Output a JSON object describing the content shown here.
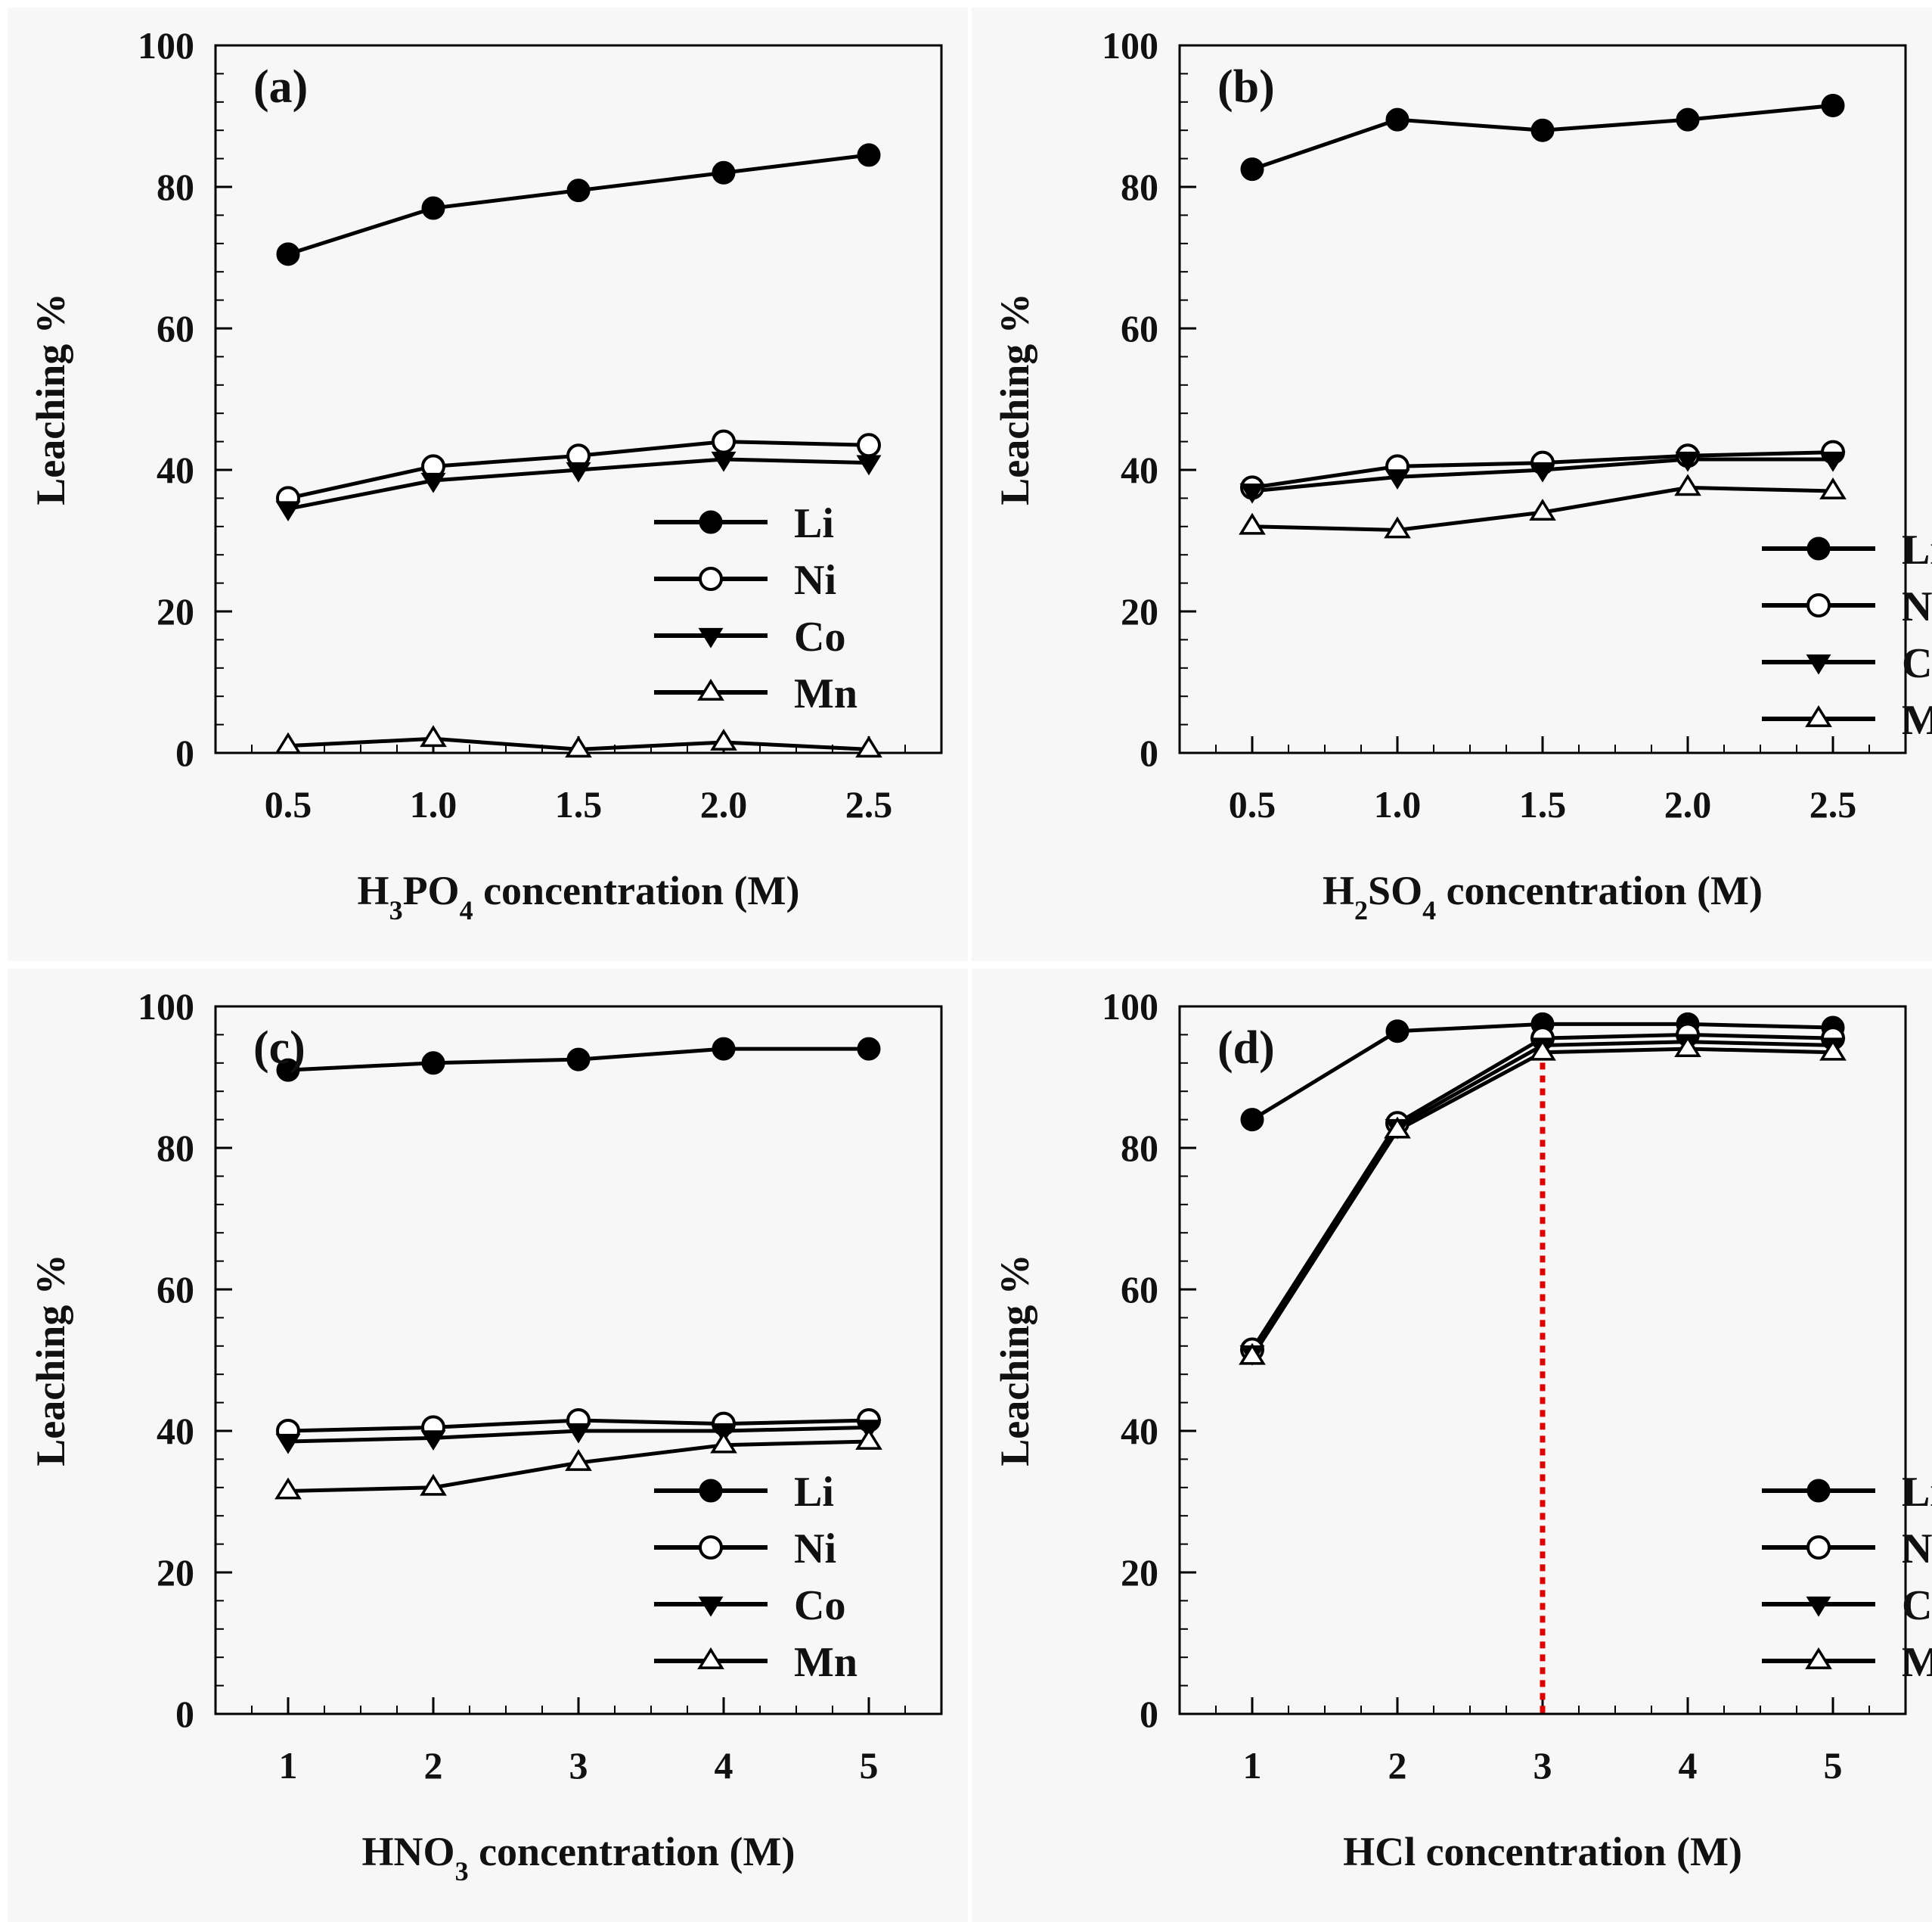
{
  "chart_data": [
    {
      "type": "line",
      "panel_label": "(a)",
      "xlabel_parts": [
        "H",
        "3",
        "PO",
        "4",
        " concentration (M)"
      ],
      "xlabel": "H3PO4 concentration (M)",
      "ylabel": "Leaching %",
      "x": [
        0.5,
        1.0,
        1.5,
        2.0,
        2.5
      ],
      "x_tick_labels": [
        "0.5",
        "1.0",
        "1.5",
        "2.0",
        "2.5"
      ],
      "xlim": [
        0.25,
        2.75
      ],
      "ylim": [
        0,
        100
      ],
      "y_ticks": [
        0,
        20,
        40,
        60,
        80,
        100
      ],
      "legend_position": "right",
      "series": [
        {
          "name": "Li",
          "marker": "filled-circle",
          "values": [
            70.5,
            77,
            79.5,
            82,
            84.5
          ]
        },
        {
          "name": "Ni",
          "marker": "open-circle",
          "values": [
            36,
            40.5,
            42,
            44,
            43.5
          ]
        },
        {
          "name": "Co",
          "marker": "filled-down-triangle",
          "values": [
            34.5,
            38.5,
            40,
            41.5,
            41
          ]
        },
        {
          "name": "Mn",
          "marker": "open-up-triangle",
          "values": [
            1,
            2,
            0.5,
            1.5,
            0.5
          ]
        }
      ]
    },
    {
      "type": "line",
      "panel_label": "(b)",
      "xlabel_parts": [
        "H",
        "2",
        "SO",
        "4",
        " concentration (M)"
      ],
      "xlabel": "H2SO4 concentration (M)",
      "ylabel": "Leaching %",
      "x": [
        0.5,
        1.0,
        1.5,
        2.0,
        2.5
      ],
      "x_tick_labels": [
        "0.5",
        "1.0",
        "1.5",
        "2.0",
        "2.5"
      ],
      "xlim": [
        0.25,
        2.75
      ],
      "ylim": [
        0,
        100
      ],
      "y_ticks": [
        0,
        20,
        40,
        60,
        80,
        100
      ],
      "legend_position": "right",
      "series": [
        {
          "name": "Li",
          "marker": "filled-circle",
          "values": [
            82.5,
            89.5,
            88,
            89.5,
            91.5
          ]
        },
        {
          "name": "Ni",
          "marker": "open-circle",
          "values": [
            37.5,
            40.5,
            41,
            42,
            42.5
          ]
        },
        {
          "name": "Co",
          "marker": "filled-down-triangle",
          "values": [
            37,
            39,
            40,
            41.5,
            41.5
          ]
        },
        {
          "name": "Mn",
          "marker": "open-up-triangle",
          "values": [
            32,
            31.5,
            34,
            37.5,
            37
          ]
        }
      ]
    },
    {
      "type": "line",
      "panel_label": "(c)",
      "xlabel_parts": [
        "HNO",
        "3",
        " concentration (M)"
      ],
      "xlabel": "HNO3 concentration (M)",
      "ylabel": "Leaching %",
      "x": [
        1,
        2,
        3,
        4,
        5
      ],
      "x_tick_labels": [
        "1",
        "2",
        "3",
        "4",
        "5"
      ],
      "xlim": [
        0.5,
        5.5
      ],
      "ylim": [
        0,
        100
      ],
      "y_ticks": [
        0,
        20,
        40,
        60,
        80,
        100
      ],
      "legend_position": "right",
      "series": [
        {
          "name": "Li",
          "marker": "filled-circle",
          "values": [
            91,
            92,
            92.5,
            94,
            94
          ]
        },
        {
          "name": "Ni",
          "marker": "open-circle",
          "values": [
            40,
            40.5,
            41.5,
            41,
            41.5
          ]
        },
        {
          "name": "Co",
          "marker": "filled-down-triangle",
          "values": [
            38.5,
            39,
            40,
            40,
            40.5
          ]
        },
        {
          "name": "Mn",
          "marker": "open-up-triangle",
          "values": [
            31.5,
            32,
            35.5,
            38,
            38.5
          ]
        }
      ]
    },
    {
      "type": "line",
      "panel_label": "(d)",
      "xlabel_parts": [
        "HCl concentration (M)"
      ],
      "xlabel": "HCl concentration (M)",
      "ylabel": "Leaching %",
      "x": [
        1,
        2,
        3,
        4,
        5
      ],
      "x_tick_labels": [
        "1",
        "2",
        "3",
        "4",
        "5"
      ],
      "xlim": [
        0.5,
        5.5
      ],
      "ylim": [
        0,
        100
      ],
      "y_ticks": [
        0,
        20,
        40,
        60,
        80,
        100
      ],
      "legend_position": "right",
      "reference_line": {
        "x": 3,
        "color": "#e00000",
        "style": "dotted"
      },
      "series": [
        {
          "name": "Li",
          "marker": "filled-circle",
          "values": [
            84,
            96.5,
            97.5,
            97.5,
            97
          ]
        },
        {
          "name": "Ni",
          "marker": "open-circle",
          "values": [
            51.5,
            83.5,
            95.5,
            96,
            95.5
          ]
        },
        {
          "name": "Co",
          "marker": "filled-down-triangle",
          "values": [
            51,
            83,
            94.5,
            95,
            94.5
          ]
        },
        {
          "name": "Mn",
          "marker": "open-up-triangle",
          "values": [
            50.5,
            82.5,
            93.5,
            94,
            93.5
          ]
        }
      ]
    }
  ]
}
